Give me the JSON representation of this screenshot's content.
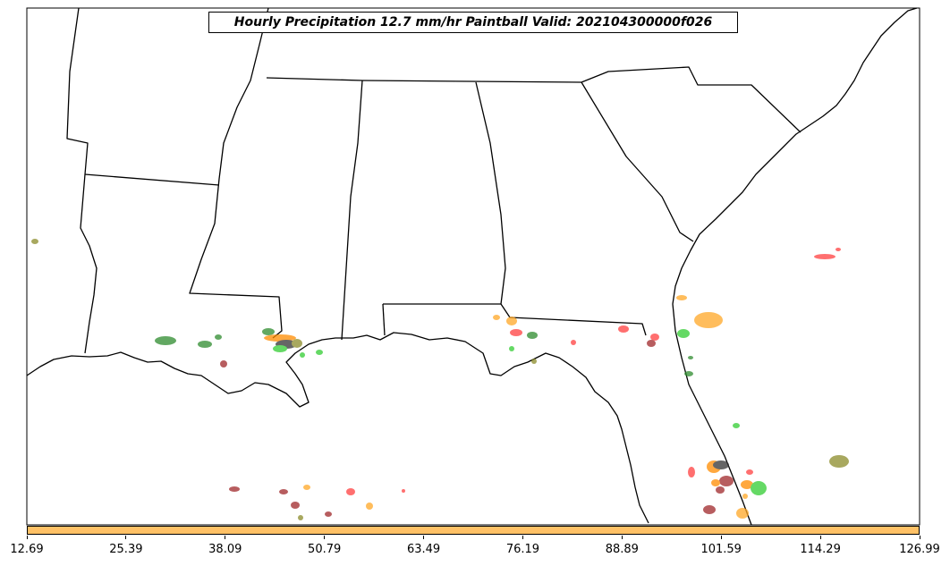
{
  "title": "Hourly Precipitation 12.7 mm/hr Paintball Valid: 202104300000f026",
  "colorbar": {
    "color": "#ffc166",
    "ticks": [
      "12.69",
      "25.39",
      "38.09",
      "50.79",
      "63.49",
      "76.19",
      "88.89",
      "101.59",
      "114.29",
      "126.99"
    ]
  },
  "member_colors": [
    "#2e8b2e",
    "#ff8c00",
    "#ff4040",
    "#32cd32",
    "#a0282a",
    "#ffa726",
    "#8b8b2a",
    "#333333"
  ]
}
